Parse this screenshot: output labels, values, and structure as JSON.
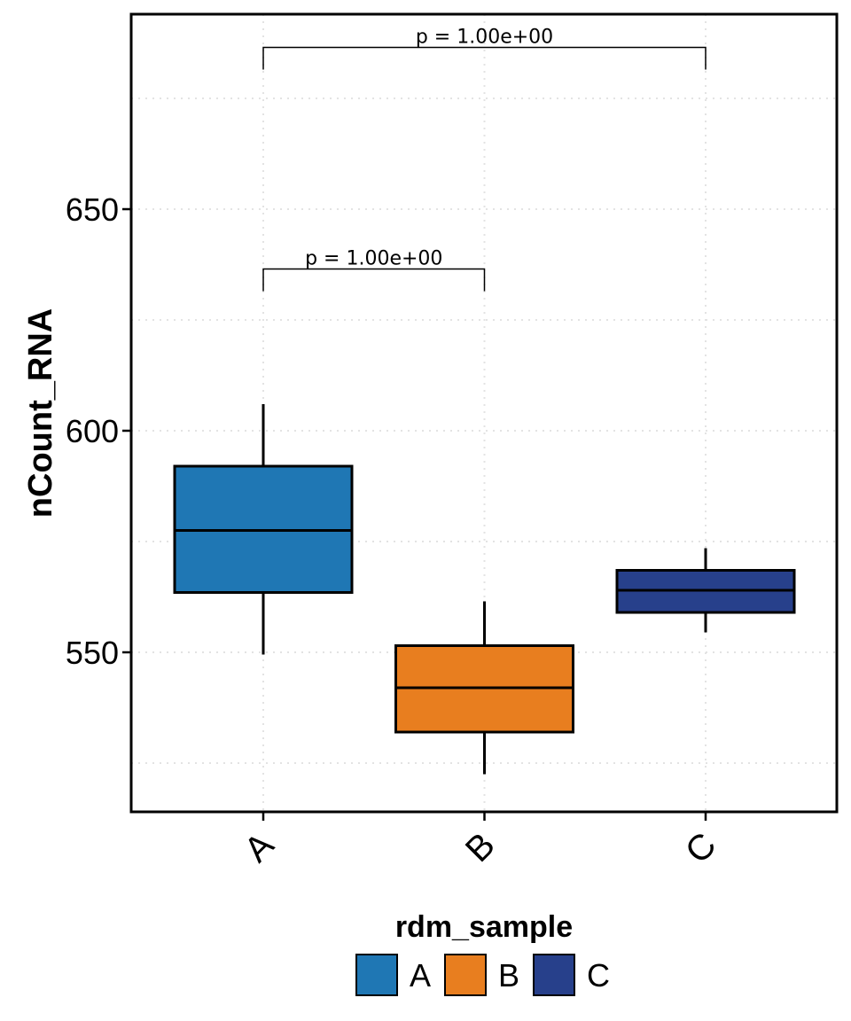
{
  "chart_data": {
    "type": "boxplot",
    "ylabel": "nCount_RNA",
    "xlabel": "",
    "categories": [
      "A",
      "B",
      "C"
    ],
    "ylim": [
      514,
      694
    ],
    "yticks": [
      550,
      600,
      650
    ],
    "grid": "dotted",
    "boxes": [
      {
        "name": "A",
        "fill": "#1F77B4",
        "min": 549.5,
        "q1": 563.5,
        "median": 577.5,
        "q3": 592,
        "max": 606
      },
      {
        "name": "B",
        "fill": "#E87E1F",
        "min": 522.5,
        "q1": 532,
        "median": 542,
        "q3": 551.5,
        "max": 561.5
      },
      {
        "name": "C",
        "fill": "#27408B",
        "min": 554.5,
        "q1": 559,
        "median": 564,
        "q3": 568.5,
        "max": 573.5
      }
    ],
    "comparisons": [
      {
        "from": "A",
        "to": "C",
        "label": "p = 1.00e+00",
        "y": 686.5
      },
      {
        "from": "A",
        "to": "B",
        "label": "p = 1.00e+00",
        "y": 636.5
      }
    ],
    "legend": {
      "title": "rdm_sample",
      "position": "bottom",
      "items": [
        {
          "label": "A",
          "color": "#1F77B4"
        },
        {
          "label": "B",
          "color": "#E87E1F"
        },
        {
          "label": "C",
          "color": "#27408B"
        }
      ]
    }
  }
}
